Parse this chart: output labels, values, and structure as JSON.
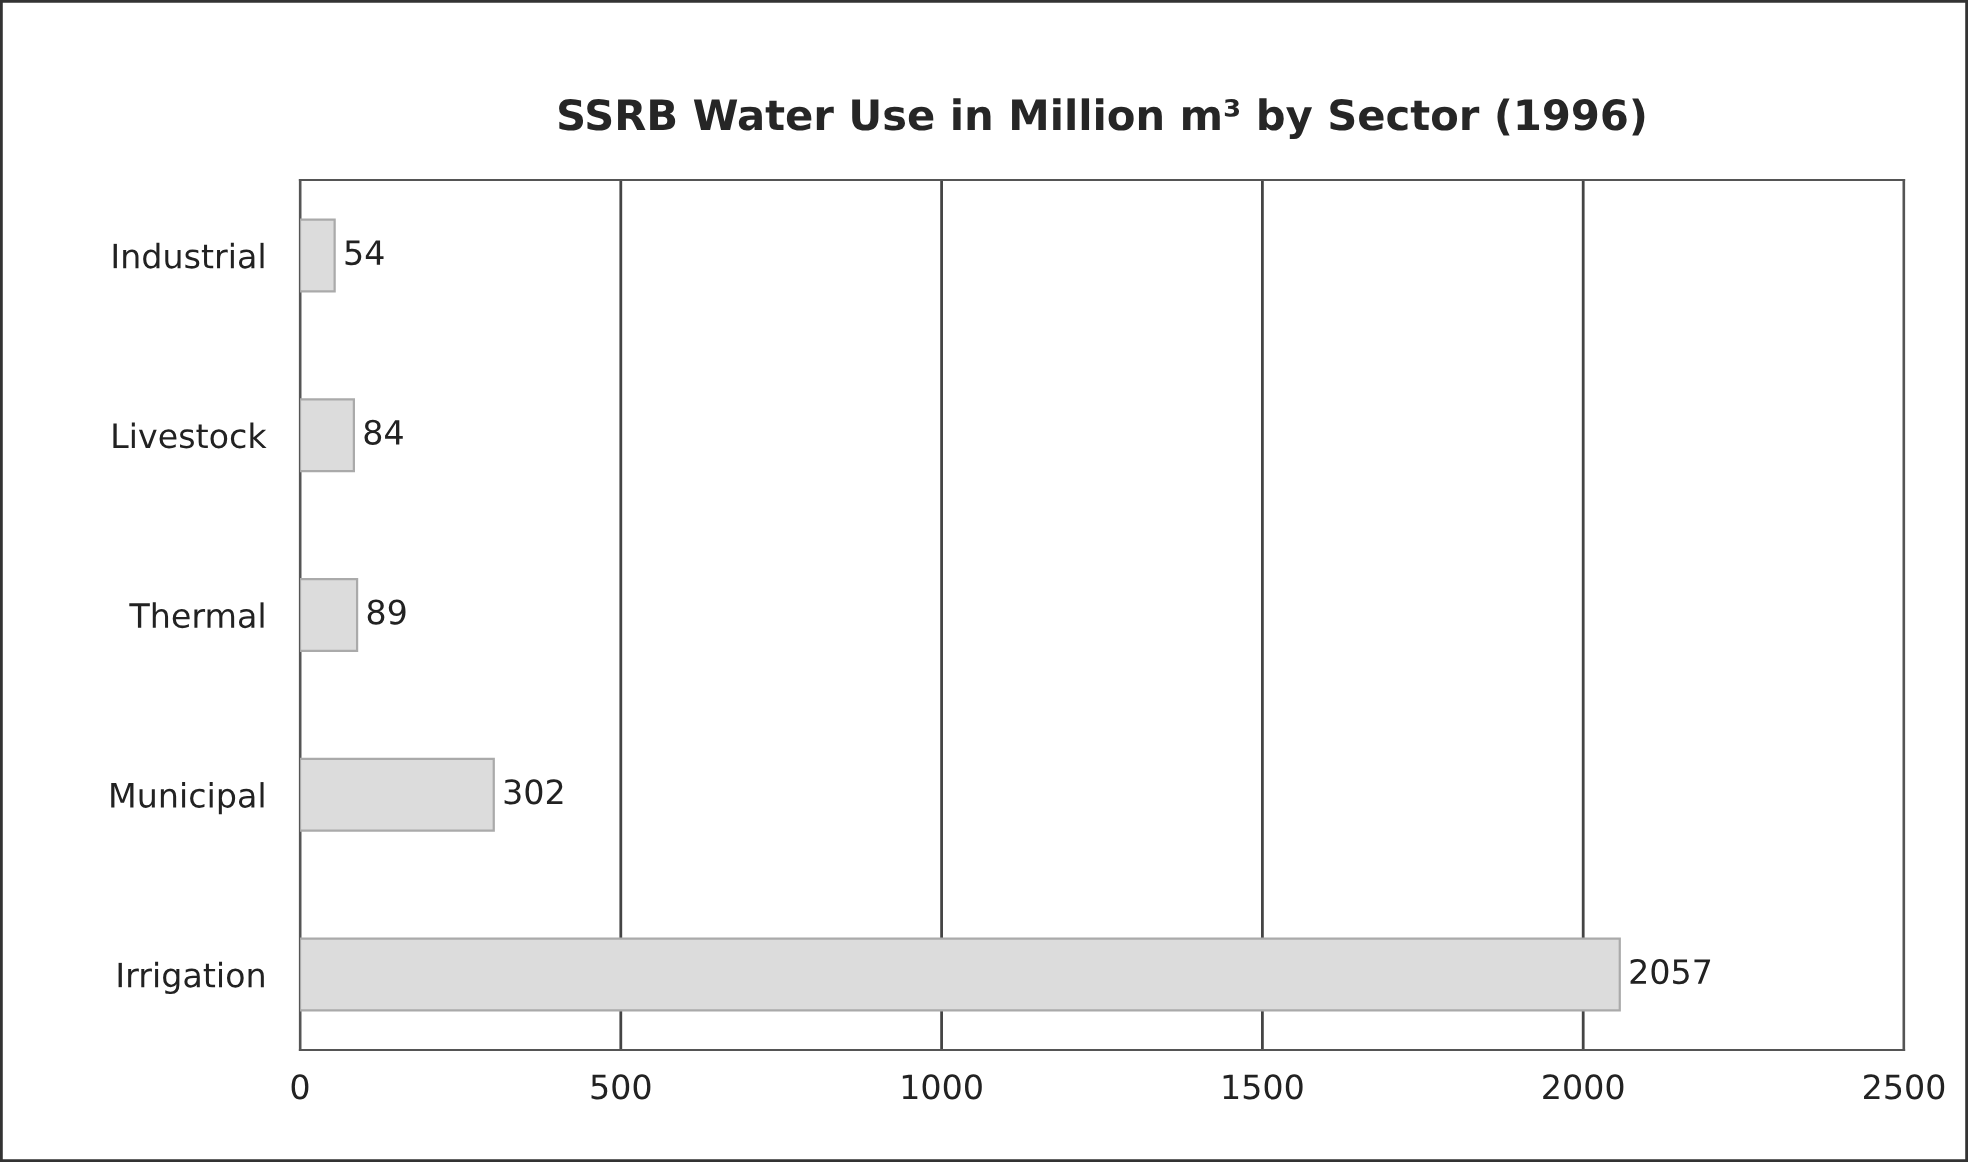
{
  "chart_data": {
    "type": "bar",
    "orientation": "horizontal",
    "title": "SSRB Water Use in Million m³ by Sector (1996)",
    "categories": [
      "Industrial",
      "Livestock",
      "Thermal",
      "Municipal",
      "Irrigation"
    ],
    "values": [
      54,
      84,
      89,
      302,
      2057
    ],
    "color": "#dcdcdc",
    "xlim": [
      0,
      2500
    ],
    "xticks": [
      0,
      500,
      1000,
      1500,
      2000,
      2500
    ],
    "grid": "x",
    "data_labels": true
  }
}
